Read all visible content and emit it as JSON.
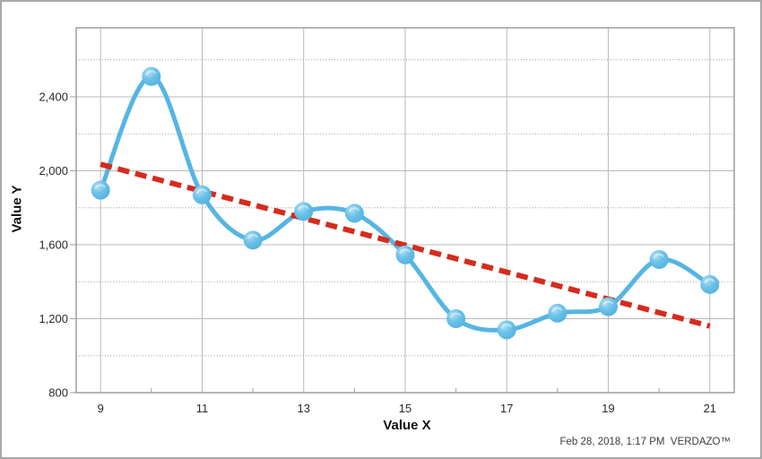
{
  "footer": {
    "text": "Feb 28, 2018, 1:17 PM  VERDAZO™"
  },
  "chart_data": {
    "type": "line",
    "title": "",
    "xlabel": "Value X",
    "ylabel": "Value Y",
    "x": [
      9,
      10,
      11,
      12,
      13,
      14,
      15,
      16,
      17,
      18,
      19,
      20,
      21
    ],
    "series": [
      {
        "name": "Value Y",
        "style": "smooth-line-with-markers",
        "values": [
          1895,
          2510,
          1870,
          1625,
          1780,
          1770,
          1545,
          1200,
          1140,
          1230,
          1265,
          1520,
          1385
        ]
      },
      {
        "name": "Linear trend",
        "style": "dashed-trendline",
        "points": [
          {
            "x": 9,
            "y": 2035
          },
          {
            "x": 21,
            "y": 1160
          }
        ]
      }
    ],
    "x_ticks": [
      {
        "value": 9,
        "label": "9"
      },
      {
        "value": 11,
        "label": "11"
      },
      {
        "value": 13,
        "label": "13"
      },
      {
        "value": 15,
        "label": "15"
      },
      {
        "value": 17,
        "label": "17"
      },
      {
        "value": 19,
        "label": "19"
      },
      {
        "value": 21,
        "label": "21"
      }
    ],
    "x_minor_ticks": [
      10,
      12,
      14,
      16,
      18,
      20
    ],
    "y_ticks": [
      {
        "value": 800,
        "label": "800"
      },
      {
        "value": 1200,
        "label": "1,200"
      },
      {
        "value": 1600,
        "label": "1,600"
      },
      {
        "value": 2000,
        "label": "2,000"
      },
      {
        "value": 2400,
        "label": "2,400"
      }
    ],
    "y_minor_gridlines": [
      1000,
      1400,
      1800,
      2200,
      2600
    ],
    "xlim": [
      8.52,
      21.48
    ],
    "ylim": [
      800,
      2773
    ],
    "grid": true,
    "legend": "none",
    "colors": {
      "line": "#55b5e3",
      "marker_light": "#b3e1f5",
      "marker_mid": "#6ec2e9",
      "marker_dark": "#4fb0dd",
      "trend": "#d62b1e",
      "major_grid": "#b9b9b9",
      "minor_grid": "#9a9a9a",
      "plot_border": "#9e9e9e",
      "tick_mark": "#9e9e9e",
      "tick_text": "#2b2b2b"
    }
  }
}
